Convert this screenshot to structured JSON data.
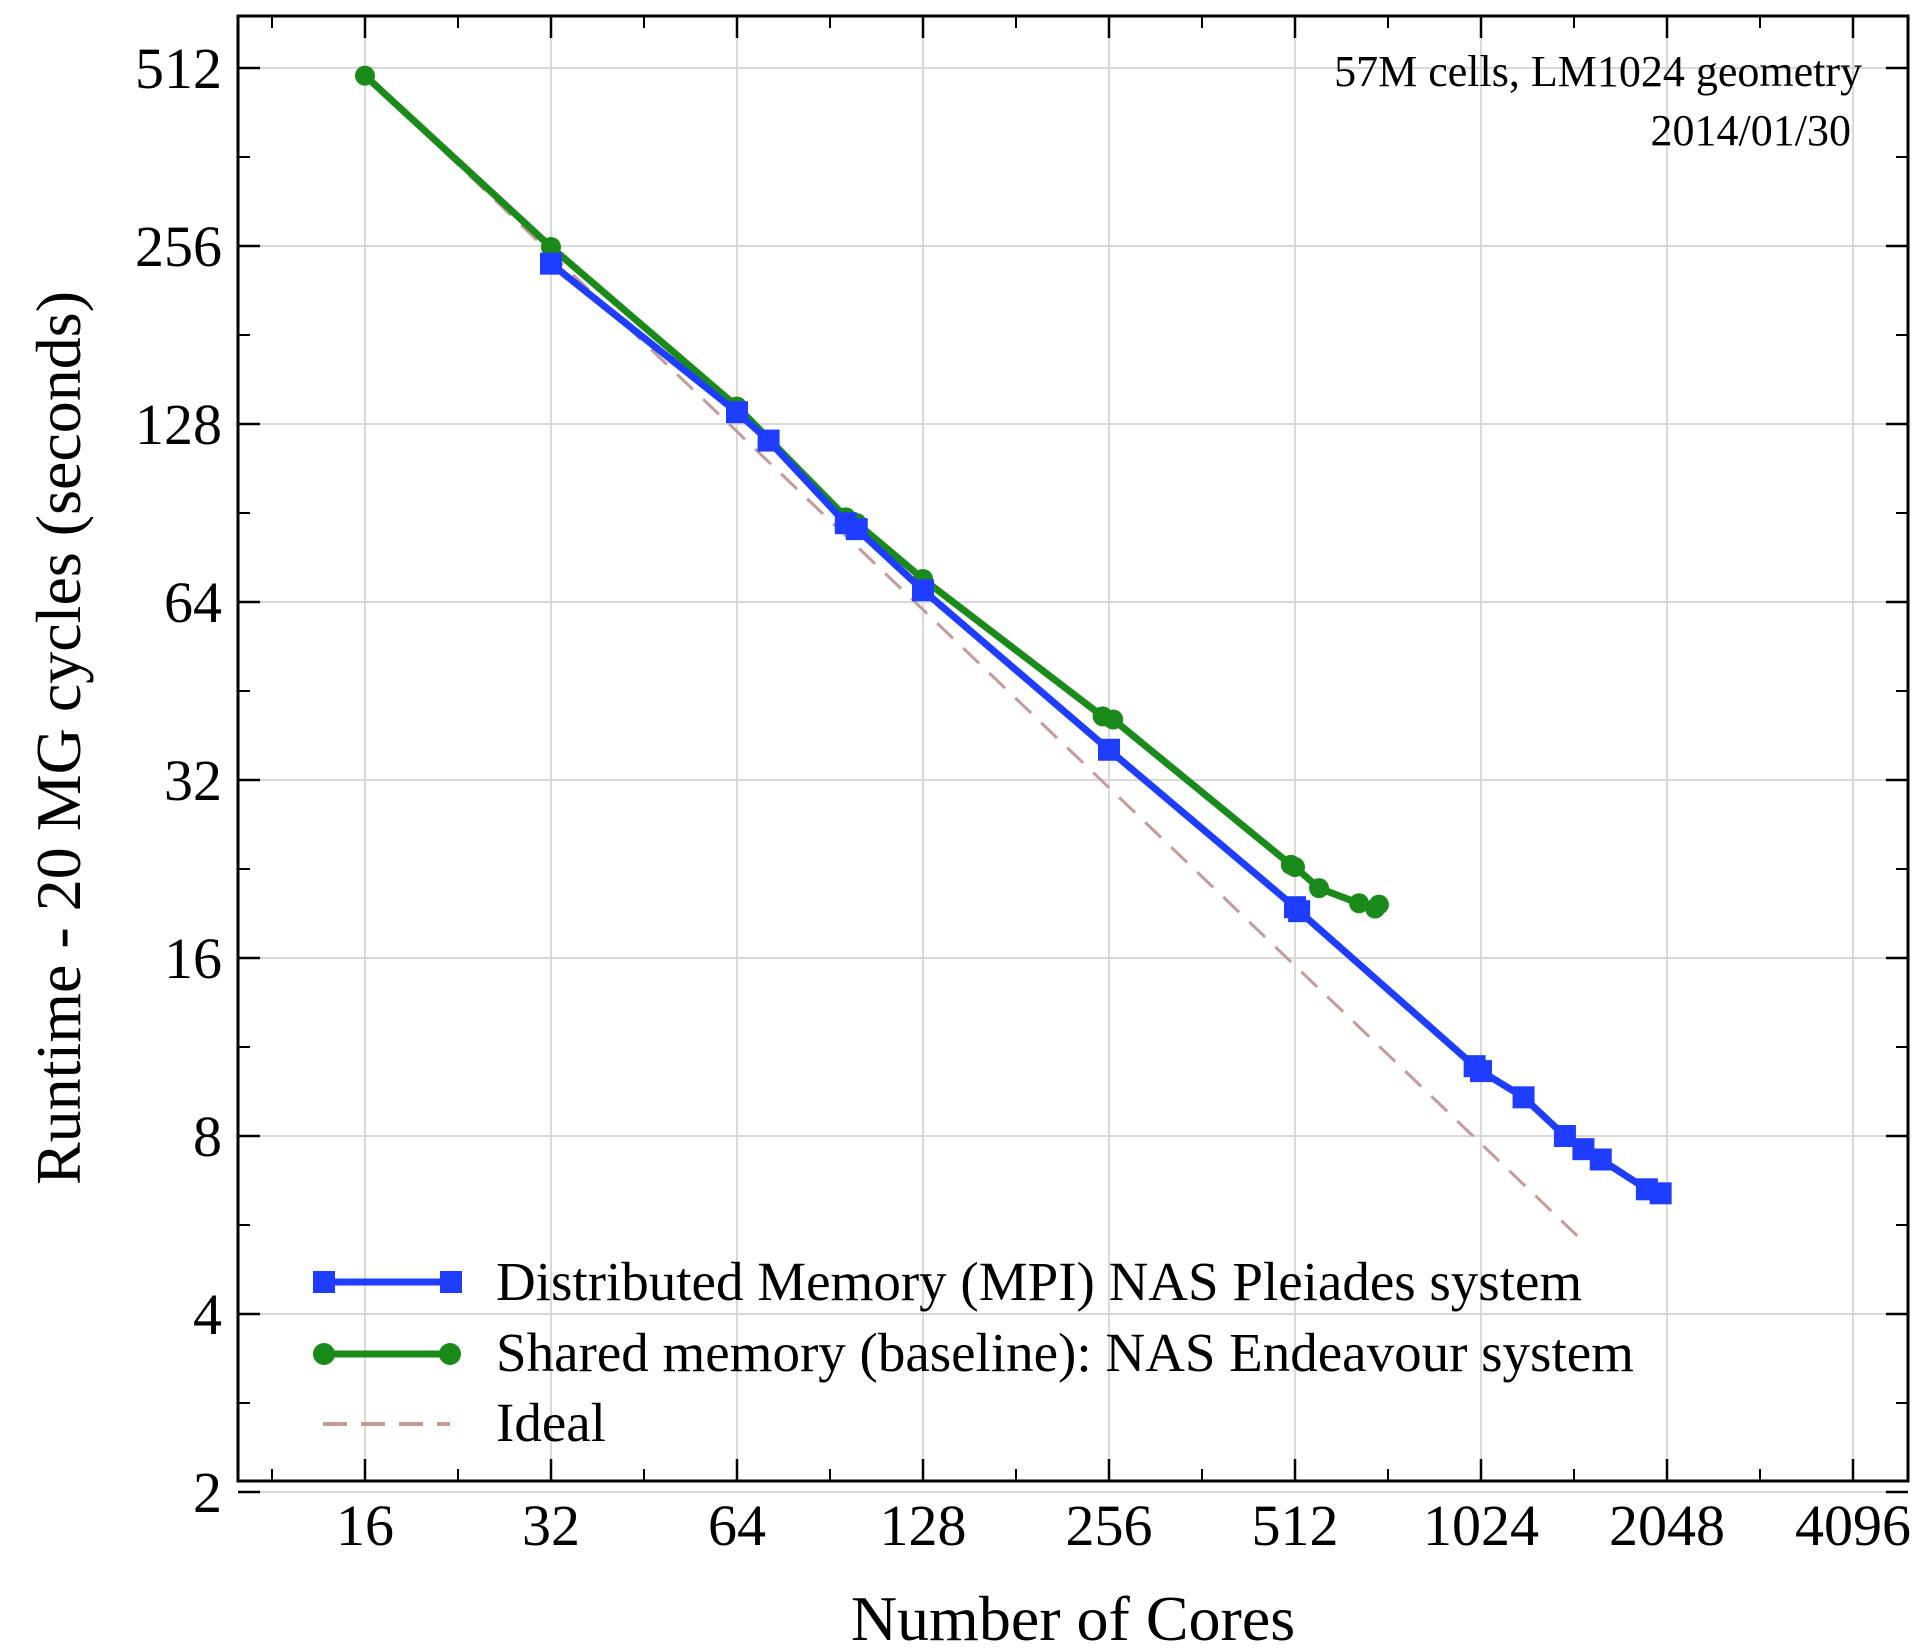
{
  "chart_data": {
    "type": "line",
    "title": "",
    "xlabel": "Number of Cores",
    "ylabel": "Runtime - 20 MG cycles (seconds)",
    "xscale": "log2",
    "yscale": "log2",
    "xlim": [
      10,
      5000
    ],
    "ylim": [
      2,
      580
    ],
    "xticks": [
      16,
      32,
      64,
      128,
      256,
      512,
      1024,
      2048,
      4096
    ],
    "xtick_labels": [
      "16",
      "32",
      "64",
      "128",
      "256",
      "512",
      "1024",
      "2048",
      "4096"
    ],
    "yticks": [
      2,
      4,
      8,
      16,
      32,
      64,
      128,
      256,
      512
    ],
    "ytick_labels": [
      "2",
      "4",
      "8",
      "16",
      "32",
      "64",
      "128",
      "256",
      "512"
    ],
    "grid": true,
    "legend_position": "bottom-left",
    "annotations": [
      "57M cells, LM1024 geometry",
      "2014/01/30"
    ],
    "series": [
      {
        "name": "Distributed Memory (MPI) NAS Pleiades system",
        "color": "#1f3dff",
        "marker": "square",
        "style": "solid",
        "x": [
          32,
          64,
          72,
          96,
          100,
          128,
          256,
          512,
          520,
          1000,
          1024,
          1200,
          1400,
          1500,
          1600,
          1900,
          2000
        ],
        "y": [
          239,
          134,
          120,
          87,
          85,
          67,
          36,
          19.5,
          19.2,
          10.5,
          10.3,
          9.3,
          8,
          7.6,
          7.3,
          6.5,
          6.4
        ]
      },
      {
        "name": "Shared memory (baseline): NAS Endeavour system",
        "color": "#1a8a1a",
        "marker": "circle",
        "style": "solid",
        "x": [
          16,
          32,
          64,
          96,
          100,
          128,
          250,
          260,
          504,
          512,
          560,
          650,
          690,
          700
        ],
        "y": [
          497,
          255,
          137,
          89,
          87,
          70,
          41,
          40.5,
          23,
          22.8,
          21,
          19.8,
          19.4,
          19.7
        ]
      },
      {
        "name": "Ideal",
        "color": "#c49a9a",
        "marker": "none",
        "style": "dashed",
        "x": [
          16,
          1500
        ],
        "y": [
          497,
          5.3
        ]
      }
    ]
  }
}
